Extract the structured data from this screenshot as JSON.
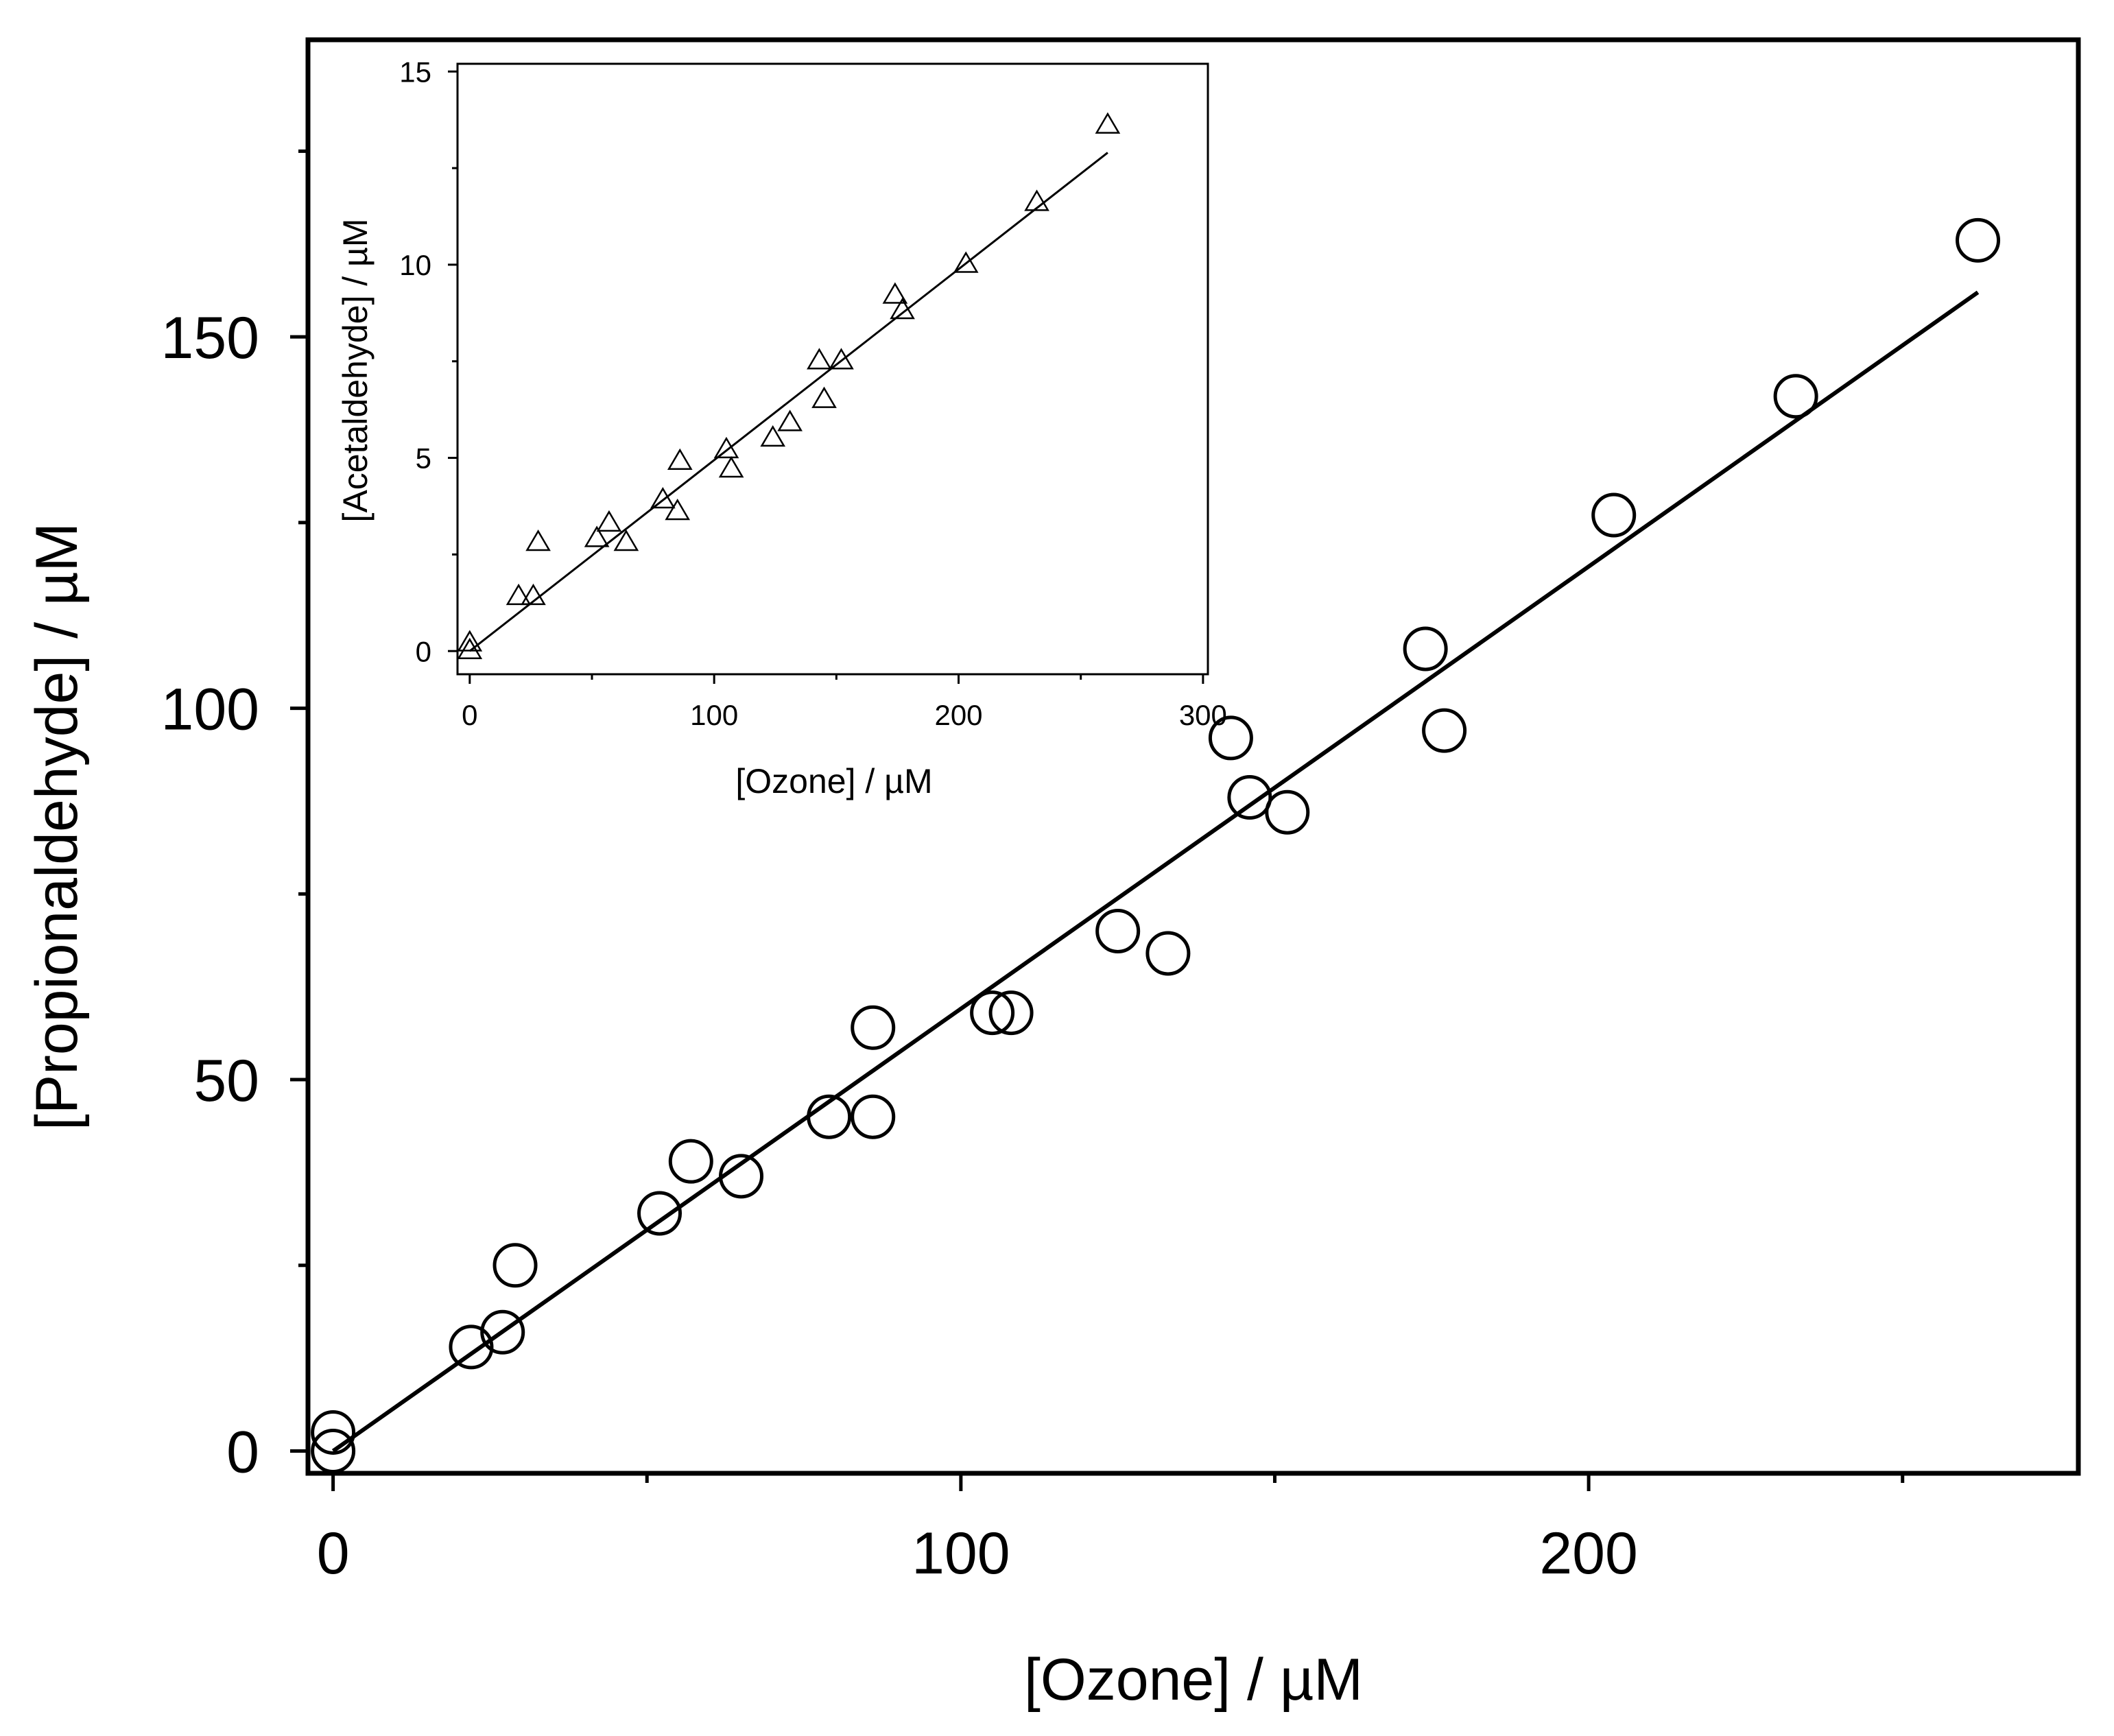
{
  "chart_data": [
    {
      "id": "main",
      "type": "scatter",
      "xlabel": "[Ozone] / µM",
      "ylabel": "[Propionaldehyde] / µM",
      "xlim": [
        -4,
        278
      ],
      "ylim": [
        -3,
        190
      ],
      "xticks": [
        0,
        100,
        200
      ],
      "xticks_minor": [
        50,
        150,
        250
      ],
      "yticks": [
        0,
        50,
        100,
        150
      ],
      "yticks_minor": [
        25,
        75,
        125,
        175
      ],
      "grid": false,
      "marker": "circle",
      "series": [
        {
          "x": [
            0,
            0,
            22,
            27,
            29,
            52,
            57,
            65,
            79,
            86,
            86,
            105,
            108,
            125,
            133,
            143,
            146,
            152,
            174,
            177,
            204,
            233,
            262
          ],
          "y": [
            2.5,
            0,
            14,
            16,
            25,
            32,
            39,
            37,
            45,
            57,
            45,
            59,
            59,
            70,
            67,
            96,
            88,
            86,
            108,
            97,
            126,
            142,
            163
          ]
        }
      ],
      "fit_line": {
        "x": [
          0,
          262
        ],
        "y": [
          0,
          156
        ]
      }
    },
    {
      "id": "inset",
      "type": "scatter",
      "xlabel": "[Ozone] / µM",
      "ylabel": "[Acetaldehyde] / µM",
      "xlim": [
        -5,
        302
      ],
      "ylim": [
        -0.6,
        15.2
      ],
      "xticks": [
        0,
        100,
        200,
        300
      ],
      "xticks_minor": [
        50,
        150,
        250
      ],
      "yticks": [
        0,
        5,
        10,
        15
      ],
      "yticks_minor": [
        2.5,
        7.5,
        12.5
      ],
      "grid": false,
      "marker": "triangle",
      "series": [
        {
          "x": [
            0,
            0,
            20,
            26,
            28,
            52,
            57,
            64,
            79,
            85,
            86,
            105,
            107,
            124,
            131,
            143,
            145,
            152,
            174,
            177,
            203,
            232,
            261
          ],
          "y": [
            0,
            0.2,
            1.4,
            1.4,
            2.8,
            2.9,
            3.3,
            2.8,
            3.9,
            3.6,
            4.9,
            5.2,
            4.7,
            5.5,
            5.9,
            7.5,
            6.5,
            7.5,
            9.2,
            8.8,
            10,
            11.6,
            13.6
          ]
        }
      ],
      "fit_line": {
        "x": [
          0,
          261
        ],
        "y": [
          0,
          12.9
        ]
      }
    }
  ]
}
